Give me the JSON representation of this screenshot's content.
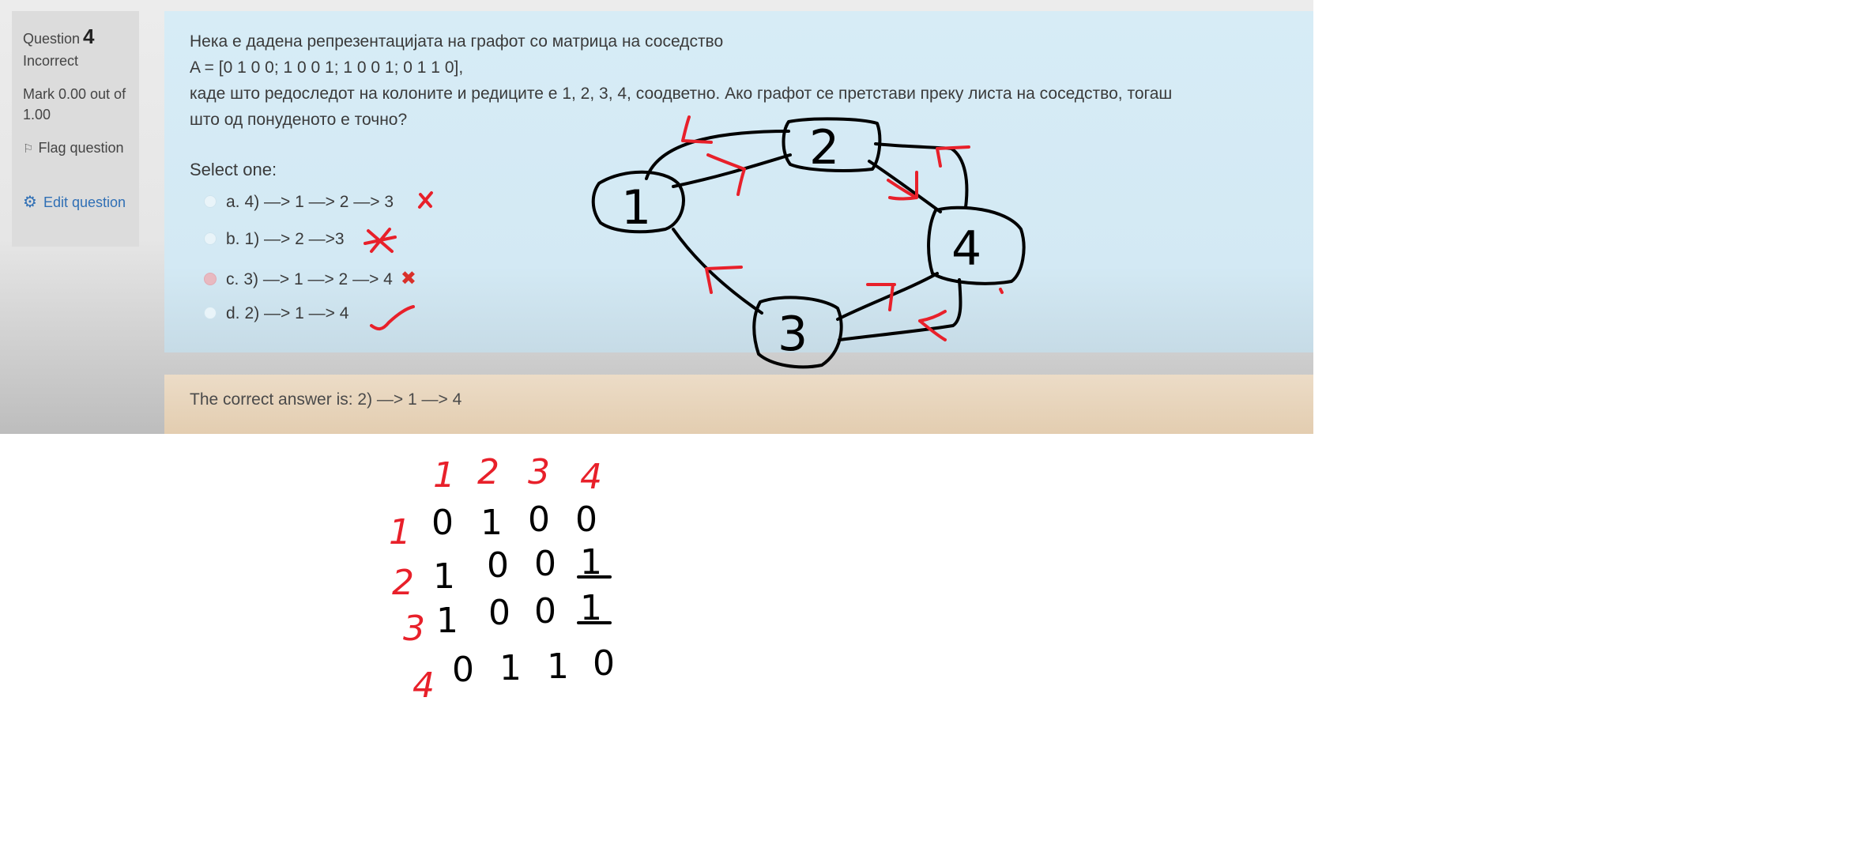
{
  "info": {
    "question_word": "Question",
    "question_number": "4",
    "state": "Incorrect",
    "mark": "Mark 0.00 out of 1.00",
    "flag_label": "Flag question",
    "edit_label": "Edit question"
  },
  "question": {
    "line1": "Нека е дадена репрезентацијата на графот со матрица на соседство",
    "line2": "A = [0 1 0 0; 1 0 0 1; 1 0 0 1; 0 1 1 0],",
    "line3": "каде што редоследот на колоните и редиците е 1, 2, 3, 4, соодветно. Ако графот се претстави преку листа на соседство, тогаш",
    "line4": "што од понуденото е точно?",
    "select_one": "Select one:",
    "options": [
      {
        "letter": "a.",
        "text": "4) —> 1 —> 2 —> 3"
      },
      {
        "letter": "b.",
        "text": "1) —> 2 —>3"
      },
      {
        "letter": "c.",
        "text": "3) —> 1 —> 2 —> 4",
        "feedback_mark": "✖"
      },
      {
        "letter": "d.",
        "text": "2) —> 1 —> 4"
      }
    ]
  },
  "feedback": {
    "correct_answer": "The correct answer is: 2) —> 1 —> 4"
  },
  "graph": {
    "nodes": [
      "1",
      "2",
      "3",
      "4"
    ]
  },
  "matrix": {
    "col_headers": [
      "1",
      "2",
      "3",
      "4"
    ],
    "row_headers": [
      "1",
      "2",
      "3",
      "4"
    ],
    "rows": [
      [
        "0",
        "1",
        "0",
        "0"
      ],
      [
        "1",
        "0",
        "0",
        "1"
      ],
      [
        "1",
        "0",
        "0",
        "1"
      ],
      [
        "0",
        "1",
        "1",
        "0"
      ]
    ]
  },
  "colors": {
    "ink_black": "#000000",
    "ink_red": "#e8202a",
    "question_bg": "#d7ecf6",
    "feedback_bg": "#e8d5bc",
    "link_blue": "#2f6fb5"
  }
}
